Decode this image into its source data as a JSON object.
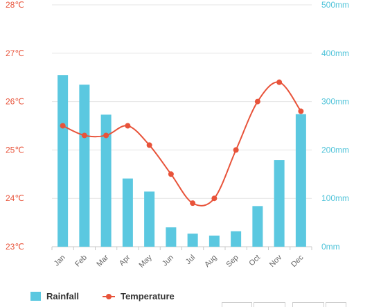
{
  "chart_data": {
    "type": "bar",
    "categories": [
      "Jan",
      "Feb",
      "Mar",
      "Apr",
      "May",
      "Jun",
      "Jul",
      "Aug",
      "Sep",
      "Oct",
      "Nov",
      "Dec"
    ],
    "series": [
      {
        "name": "Rainfall",
        "type": "bar",
        "axis": "right",
        "color": "#5bc8e0",
        "values": [
          355,
          335,
          273,
          141,
          114,
          40,
          27,
          23,
          32,
          84,
          179,
          274
        ]
      },
      {
        "name": "Temperature",
        "type": "line",
        "axis": "left",
        "color": "#e8533a",
        "values": [
          25.5,
          25.3,
          25.3,
          25.5,
          25.1,
          24.5,
          23.9,
          24.0,
          25.0,
          26.0,
          26.4,
          25.8
        ]
      }
    ],
    "y_left": {
      "ticks": [
        "23℃",
        "24℃",
        "25℃",
        "26℃",
        "27℃",
        "28℃"
      ],
      "range": [
        23,
        28
      ]
    },
    "y_right": {
      "ticks": [
        "0mm",
        "100mm",
        "200mm",
        "300mm",
        "400mm",
        "500mm"
      ],
      "range": [
        0,
        500
      ]
    },
    "grid": true,
    "legend": "bottom-left"
  }
}
